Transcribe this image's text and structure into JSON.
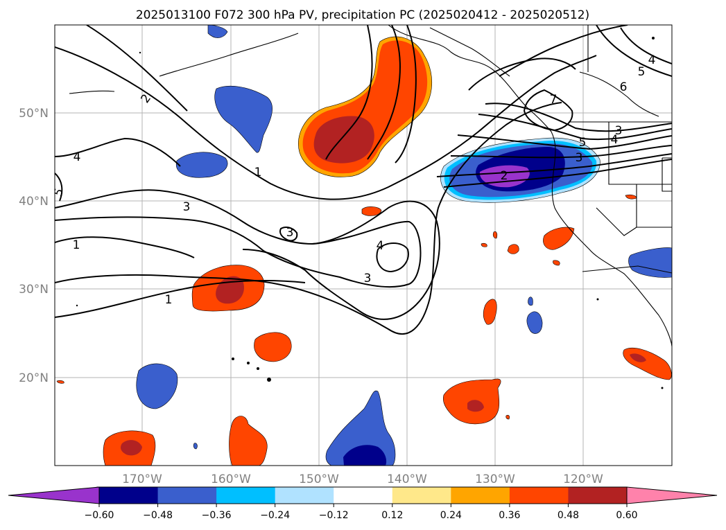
{
  "title": "2025013100 F072 300 hPa PV, precipitation PC (2025020412 - 2025020512)",
  "map": {
    "lat_labels": [
      "50°N",
      "40°N",
      "30°N",
      "20°N"
    ],
    "lon_labels": [
      "170°W",
      "160°W",
      "150°W",
      "140°W",
      "130°W",
      "120°W"
    ],
    "contour_labels": [
      "2",
      "4",
      "1",
      "3",
      "1",
      "3",
      "4",
      "3",
      "1",
      "5",
      "5",
      "4",
      "6",
      "7",
      "5",
      "4",
      "3",
      "2",
      "3"
    ],
    "grid": true
  },
  "colorbar": {
    "ticks": [
      "−0.60",
      "−0.48",
      "−0.36",
      "−0.24",
      "−0.12",
      "0.12",
      "0.24",
      "0.36",
      "0.48",
      "0.60"
    ],
    "colors": [
      "#9933cc",
      "#00008b",
      "#3a5fcd",
      "#00bfff",
      "#b0e2ff",
      "#ffffff",
      "#ffe88a",
      "#ffa500",
      "#ff4500",
      "#b22222",
      "#ff82ab"
    ]
  }
}
